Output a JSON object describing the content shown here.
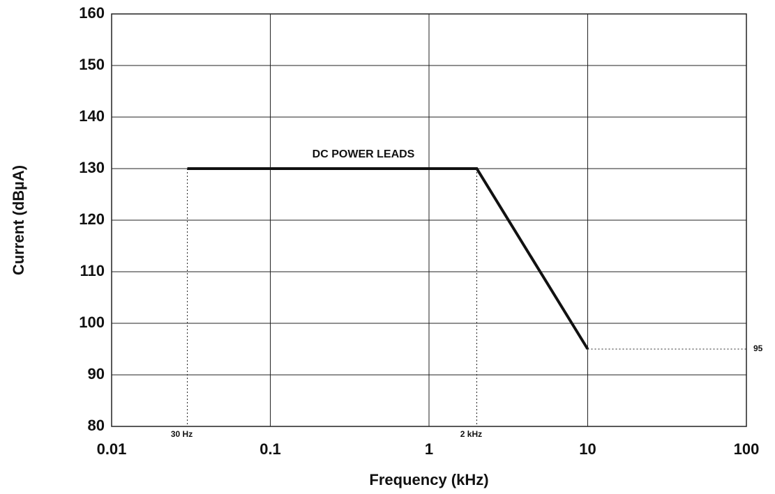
{
  "chart_data": {
    "type": "line",
    "xlabel": "Frequency (kHz)",
    "ylabel": "Current (dBµA)",
    "xscale": "log",
    "xlim": [
      0.01,
      100
    ],
    "xticks": [
      0.01,
      0.1,
      1,
      10,
      100
    ],
    "ylim": [
      80,
      160
    ],
    "yticks": [
      80,
      90,
      100,
      110,
      120,
      130,
      140,
      150,
      160
    ],
    "grid": true,
    "series": [
      {
        "name": "DC POWER LEADS",
        "color": "#111111",
        "x": [
          0.03,
          2,
          10
        ],
        "values": [
          130,
          130,
          95
        ]
      }
    ],
    "annotations": [
      "30 Hz",
      "2 kHz"
    ]
  }
}
